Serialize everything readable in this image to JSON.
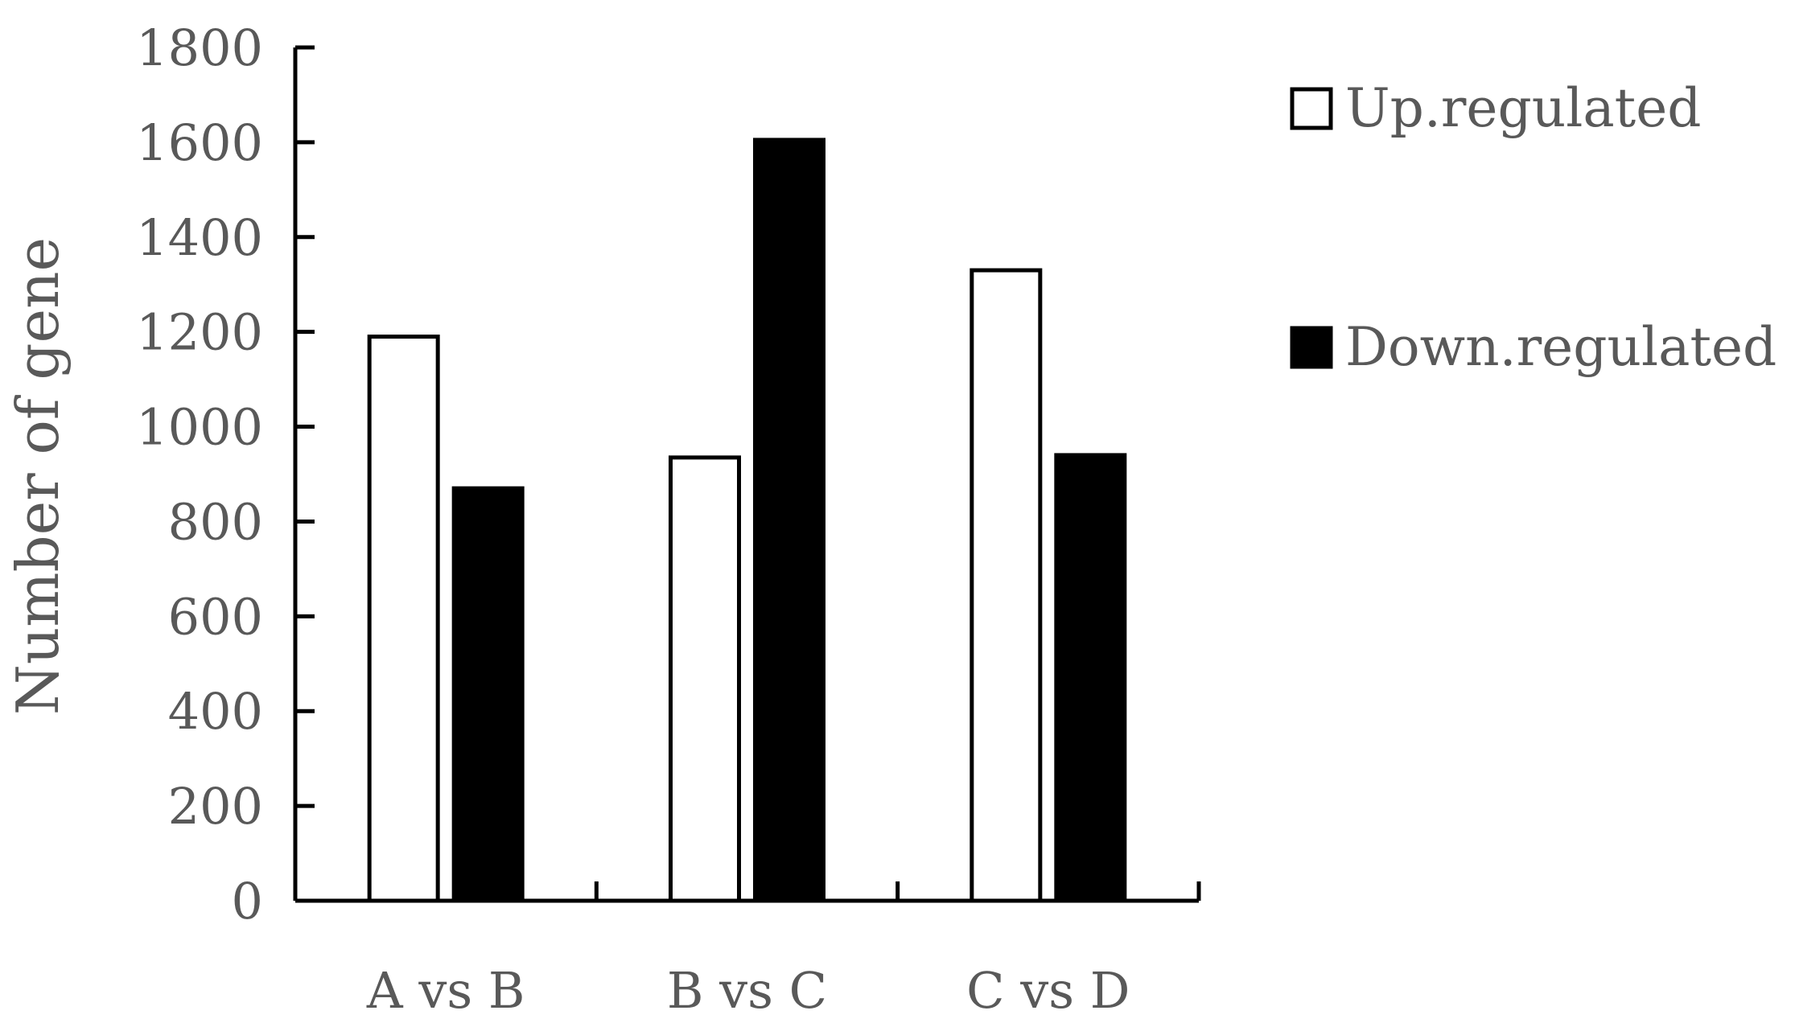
{
  "chart_data": {
    "type": "bar",
    "categories": [
      "A vs B",
      "B vs C",
      "C vs D"
    ],
    "series": [
      {
        "name": "Up.regulated",
        "values": [
          1190,
          935,
          1330
        ],
        "fill": "#ffffff",
        "stroke": "#000000"
      },
      {
        "name": "Down.regulated",
        "values": [
          870,
          1605,
          940
        ],
        "fill": "#000000",
        "stroke": "#000000"
      }
    ],
    "title": "",
    "xlabel": "",
    "ylabel": "Number of gene",
    "ylim": [
      0,
      1800
    ],
    "yticks": [
      0,
      200,
      400,
      600,
      800,
      1000,
      1200,
      1400,
      1600,
      1800
    ],
    "grid": false,
    "legend_position": "top-right"
  }
}
